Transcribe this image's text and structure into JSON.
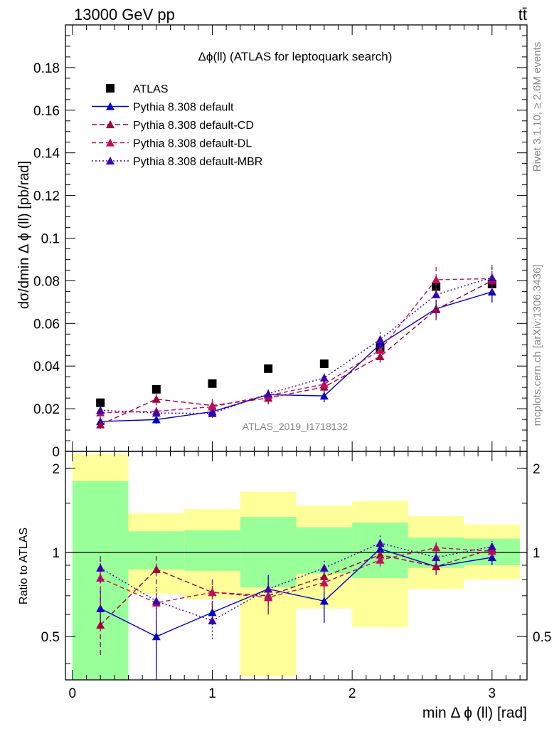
{
  "header": {
    "energy": "13000 GeV pp",
    "process": "tt̄"
  },
  "side": {
    "rivet": "Rivet 3.1.10, ≥ 2.6M events",
    "mcplots": "mcplots.cern.ch [arXiv:1306.3436]"
  },
  "colors": {
    "data": "#000000",
    "default": "#0000cc",
    "cd": "#a0003c",
    "dl": "#c0105a",
    "mbr": "#3a00b0",
    "band_inner": "#99ff99",
    "band_outer": "#ffff99"
  },
  "chart_data": [
    {
      "type": "scatter",
      "title": "Δϕ(ll) (ATLAS for leptoquark search)",
      "watermark": "ATLAS_2019_I1718132",
      "ylabel": "dσ/dmin Δ ϕ (ll) [pb/rad]",
      "xlim": [
        -0.05,
        3.25
      ],
      "ylim": [
        0,
        0.2
      ],
      "ytick_labels": [
        "0",
        "0.02",
        "0.04",
        "0.06",
        "0.08",
        "0.1",
        "0.12",
        "0.14",
        "0.16",
        "0.18"
      ],
      "legend_position": "top-left",
      "x": [
        0.2,
        0.6,
        1.0,
        1.4,
        1.8,
        2.2,
        2.6,
        3.0
      ],
      "series": [
        {
          "name": "ATLAS",
          "key": "data",
          "values": [
            0.0228,
            0.0291,
            0.0318,
            0.0388,
            0.0411,
            0.0487,
            0.0773,
            0.0785
          ]
        },
        {
          "name": "Pythia 8.308 default",
          "key": "default",
          "values": [
            0.014,
            0.0149,
            0.0186,
            0.0266,
            0.026,
            0.0502,
            0.0669,
            0.0748
          ],
          "errors": [
            0.002,
            0.002,
            0.0018,
            0.002,
            0.003,
            0.003,
            0.004,
            0.005
          ]
        },
        {
          "name": "Pythia 8.308 default-CD",
          "key": "cd",
          "values": [
            0.0125,
            0.0245,
            0.0215,
            0.025,
            0.0302,
            0.0445,
            0.0665,
            0.08
          ],
          "errors": [
            0.002,
            0.003,
            0.003,
            0.003,
            0.003,
            0.003,
            0.005,
            0.006
          ]
        },
        {
          "name": "Pythia 8.308 default-DL",
          "key": "dl",
          "values": [
            0.0181,
            0.0188,
            0.0209,
            0.0262,
            0.0315,
            0.0475,
            0.0805,
            0.081
          ],
          "errors": [
            0.002,
            0.002,
            0.002,
            0.002,
            0.002,
            0.003,
            0.006,
            0.006
          ]
        },
        {
          "name": "Pythia 8.308 default-MBR",
          "key": "mbr",
          "values": [
            0.0193,
            0.018,
            0.0178,
            0.027,
            0.0345,
            0.0525,
            0.0735,
            0.0815
          ],
          "errors": [
            0.002,
            0.002,
            0.002,
            0.002,
            0.002,
            0.004,
            0.005,
            0.006
          ]
        }
      ]
    },
    {
      "type": "scatter",
      "ylabel": "Ratio to ATLAS",
      "xlabel": "min Δ ϕ (ll) [rad]",
      "xlim": [
        -0.05,
        3.25
      ],
      "ylim": [
        0.35,
        2.3
      ],
      "ytick_labels": [
        "0.5",
        "1",
        "2"
      ],
      "xtick_labels": [
        "0",
        "1",
        "2",
        "3"
      ],
      "bins": [
        {
          "lo": 0.0,
          "hi": 0.4,
          "inner": [
            0.35,
            1.8
          ],
          "outer": [
            0.35,
            2.25
          ]
        },
        {
          "lo": 0.4,
          "hi": 0.8,
          "inner": [
            0.87,
            1.19
          ],
          "outer": [
            0.71,
            1.38
          ]
        },
        {
          "lo": 0.8,
          "hi": 1.2,
          "inner": [
            0.86,
            1.2
          ],
          "outer": [
            0.68,
            1.43
          ]
        },
        {
          "lo": 1.2,
          "hi": 1.6,
          "inner": [
            0.75,
            1.34
          ],
          "outer": [
            0.36,
            1.65
          ]
        },
        {
          "lo": 1.6,
          "hi": 2.0,
          "inner": [
            0.84,
            1.23
          ],
          "outer": [
            0.63,
            1.47
          ]
        },
        {
          "lo": 2.0,
          "hi": 2.4,
          "inner": [
            0.81,
            1.28
          ],
          "outer": [
            0.54,
            1.53
          ]
        },
        {
          "lo": 2.4,
          "hi": 2.8,
          "inner": [
            0.88,
            1.13
          ],
          "outer": [
            0.74,
            1.35
          ]
        },
        {
          "lo": 2.8,
          "hi": 3.2,
          "inner": [
            0.9,
            1.12
          ],
          "outer": [
            0.8,
            1.26
          ]
        }
      ],
      "x": [
        0.2,
        0.6,
        1.0,
        1.4,
        1.8,
        2.2,
        2.6,
        3.0
      ],
      "series": [
        {
          "key": "default",
          "values": [
            0.63,
            0.5,
            0.61,
            0.74,
            0.67,
            1.03,
            0.89,
            0.96
          ],
          "errors": [
            0.1,
            0.14,
            0.06,
            0.09,
            0.11,
            0.06,
            0.05,
            0.06
          ]
        },
        {
          "key": "cd",
          "values": [
            0.55,
            0.87,
            0.72,
            0.7,
            0.82,
            0.98,
            0.89,
            1.03
          ],
          "errors": [
            0.12,
            0.1,
            0.08,
            0.1,
            0.08,
            0.06,
            0.06,
            0.05
          ]
        },
        {
          "key": "dl",
          "values": [
            0.81,
            0.66,
            0.72,
            0.69,
            0.78,
            0.94,
            1.04,
            1.01
          ],
          "errors": [
            0.16,
            0.08,
            0.08,
            0.07,
            0.06,
            0.05,
            0.05,
            0.05
          ]
        },
        {
          "key": "mbr",
          "values": [
            0.88,
            0.67,
            0.57,
            0.74,
            0.88,
            1.08,
            0.96,
            1.05
          ],
          "errors": [
            0.1,
            0.08,
            0.08,
            0.07,
            0.06,
            0.07,
            0.05,
            0.05
          ]
        }
      ]
    }
  ]
}
